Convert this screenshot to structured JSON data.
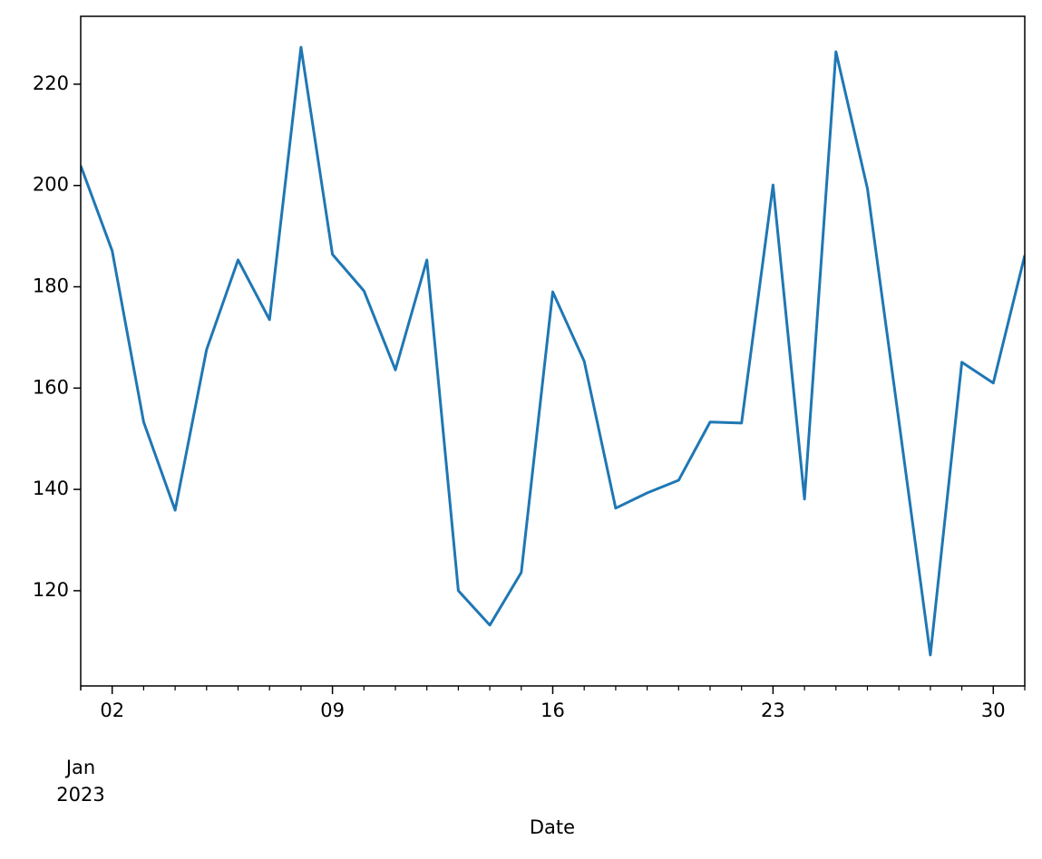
{
  "chart_data": {
    "type": "line",
    "x_label": "Date",
    "x": [
      "2023-01-01",
      "2023-01-02",
      "2023-01-03",
      "2023-01-04",
      "2023-01-05",
      "2023-01-06",
      "2023-01-07",
      "2023-01-08",
      "2023-01-09",
      "2023-01-10",
      "2023-01-11",
      "2023-01-12",
      "2023-01-13",
      "2023-01-14",
      "2023-01-15",
      "2023-01-16",
      "2023-01-17",
      "2023-01-18",
      "2023-01-19",
      "2023-01-20",
      "2023-01-21",
      "2023-01-22",
      "2023-01-23",
      "2023-01-24",
      "2023-01-25",
      "2023-01-26",
      "2023-01-27",
      "2023-01-28",
      "2023-01-29",
      "2023-01-30",
      "2023-01-31"
    ],
    "values": [
      203.9,
      187.1,
      153.3,
      135.9,
      167.6,
      185.3,
      173.5,
      227.3,
      186.4,
      179.2,
      163.6,
      185.3,
      120.0,
      113.2,
      123.6,
      179.0,
      165.3,
      136.3,
      139.3,
      141.8,
      153.3,
      153.1,
      200.1,
      138.1,
      226.4,
      199.4,
      153.5,
      107.3,
      165.1,
      161.0,
      186.2
    ],
    "color": "#1f77b4",
    "xlim": [
      "2023-01-01",
      "2023-01-31"
    ],
    "xticks": [
      {
        "value": "2023-01-01",
        "label": "Jan",
        "year": "2023"
      },
      {
        "value": "2023-01-02",
        "label": "02"
      },
      {
        "value": "2023-01-09",
        "label": "09"
      },
      {
        "value": "2023-01-16",
        "label": "16"
      },
      {
        "value": "2023-01-23",
        "label": "23"
      },
      {
        "value": "2023-01-30",
        "label": "30"
      }
    ],
    "ylim": [
      101.2,
      233.4
    ],
    "yticks": [
      120,
      140,
      160,
      180,
      200,
      220
    ],
    "grid": false
  }
}
